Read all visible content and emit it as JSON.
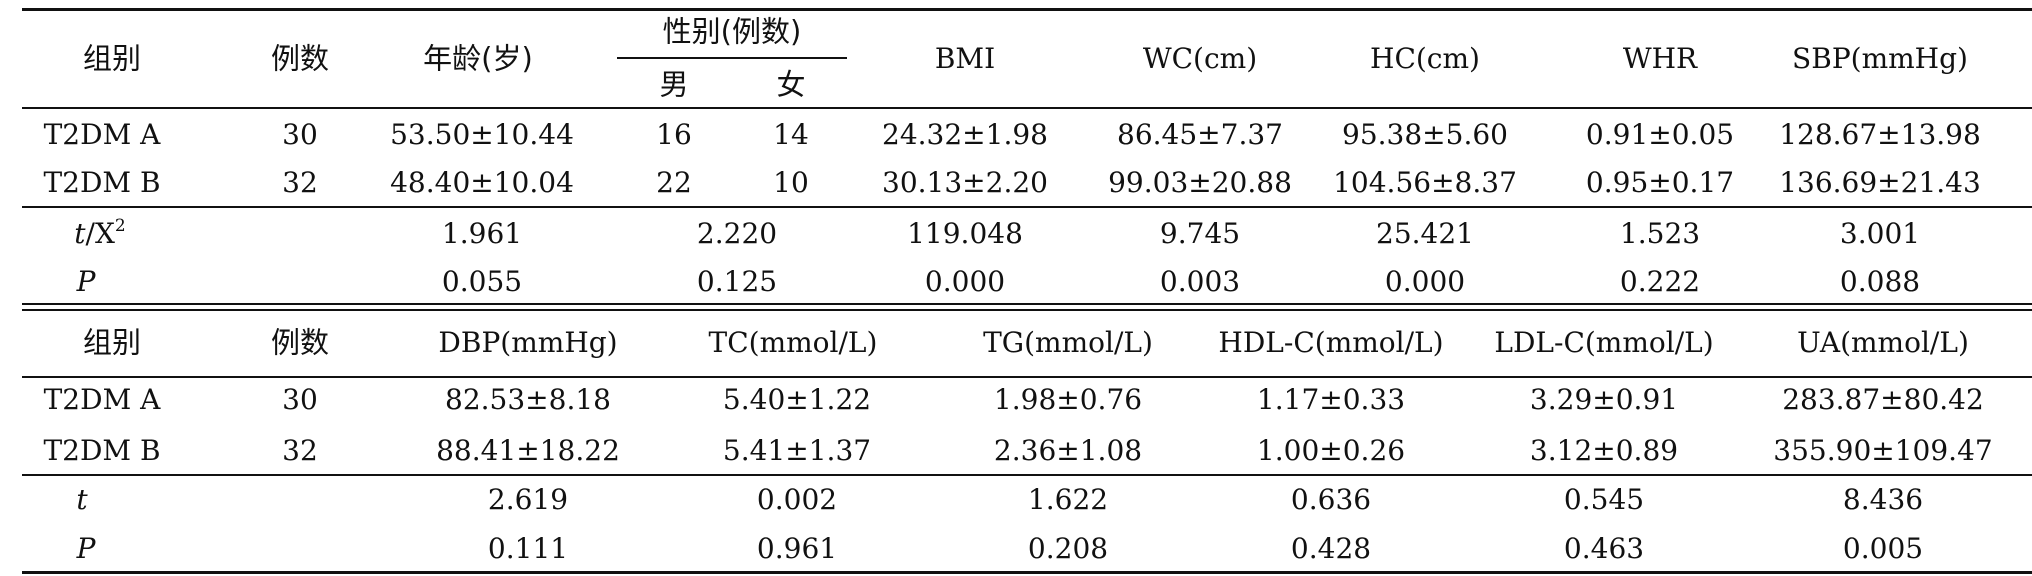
{
  "table": {
    "section1": {
      "header": {
        "group": "组别",
        "cases": "例数",
        "age": "年龄(岁)",
        "sex": "性别(例数)",
        "male": "男",
        "female": "女",
        "bmi": "BMI",
        "wc": "WC(cm)",
        "hc": "HC(cm)",
        "whr": "WHR",
        "sbp": "SBP(mmHg)"
      },
      "rows": [
        {
          "group": "T2DM A",
          "cases": "30",
          "age": "53.50±10.44",
          "male": "16",
          "female": "14",
          "bmi": "24.32±1.98",
          "wc": "86.45±7.37",
          "hc": "95.38±5.60",
          "whr": "0.91±0.05",
          "sbp": "128.67±13.98"
        },
        {
          "group": "T2DM B",
          "cases": "32",
          "age": "48.40±10.04",
          "male": "22",
          "female": "10",
          "bmi": "30.13±2.20",
          "wc": "99.03±20.88",
          "hc": "104.56±8.37",
          "whr": "0.95±0.17",
          "sbp": "136.69±21.43"
        }
      ],
      "stat": {
        "label_italic": "t",
        "label_rest": "/X",
        "label_sup": "2",
        "age": "1.961",
        "sex": "2.220",
        "bmi": "119.048",
        "wc": "9.745",
        "hc": "25.421",
        "whr": "1.523",
        "sbp": "3.001"
      },
      "p": {
        "label": "P",
        "age": "0.055",
        "sex": "0.125",
        "bmi": "0.000",
        "wc": "0.003",
        "hc": "0.000",
        "whr": "0.222",
        "sbp": "0.088"
      }
    },
    "section2": {
      "header": {
        "group": "组别",
        "cases": "例数",
        "dbp": "DBP(mmHg)",
        "tc": "TC(mmol/L)",
        "tg": "TG(mmol/L)",
        "hdl": "HDL-C(mmol/L)",
        "ldl": "LDL-C(mmol/L)",
        "ua": "UA(mmol/L)"
      },
      "rows": [
        {
          "group": "T2DM A",
          "cases": "30",
          "dbp": "82.53±8.18",
          "tc": "5.40±1.22",
          "tg": "1.98±0.76",
          "hdl": "1.17±0.33",
          "ldl": "3.29±0.91",
          "ua": "283.87±80.42"
        },
        {
          "group": "T2DM B",
          "cases": "32",
          "dbp": "88.41±18.22",
          "tc": "5.41±1.37",
          "tg": "2.36±1.08",
          "hdl": "1.00±0.26",
          "ldl": "3.12±0.89",
          "ua": "355.90±109.47"
        }
      ],
      "stat": {
        "label": "t",
        "dbp": "2.619",
        "tc": "0.002",
        "tg": "1.622",
        "hdl": "0.636",
        "ldl": "0.545",
        "ua": "8.436"
      },
      "p": {
        "label": "P",
        "dbp": "0.111",
        "tc": "0.961",
        "tg": "0.208",
        "hdl": "0.428",
        "ldl": "0.463",
        "ua": "0.005"
      }
    }
  }
}
